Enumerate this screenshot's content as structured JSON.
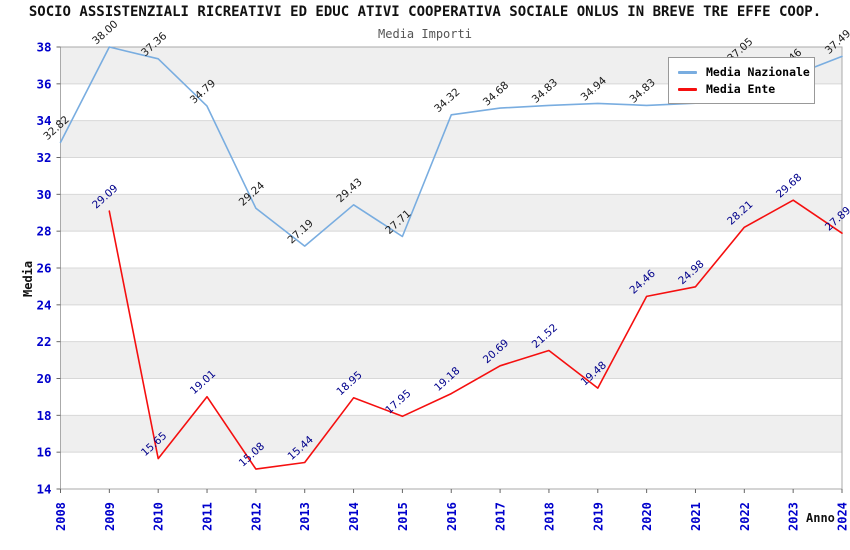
{
  "title": "SOCIO ASSISTENZIALI RICREATIVI ED EDUC ATIVI COOPERATIVA SOCIALE ONLUS IN BREVE TRE EFFE COOP.",
  "subtitle": "Media Importi",
  "chart_data": {
    "type": "line",
    "x": [
      2008,
      2009,
      2010,
      2011,
      2012,
      2013,
      2014,
      2015,
      2016,
      2017,
      2018,
      2019,
      2020,
      2021,
      2022,
      2023,
      2024
    ],
    "xlabel": "Anno",
    "ylabel": "Media",
    "ylim": [
      14,
      38
    ],
    "ytick_step": 2,
    "grid": true,
    "legend_position": "top-right",
    "colors": {
      "axis_tick": "#0000cc",
      "band_gray": "#efefef",
      "band_white": "#ffffff",
      "gridline": "#d8d8d8",
      "plot_border": "#aaaaaa"
    },
    "series": [
      {
        "name": "Media Nazionale",
        "color": "#79ade0",
        "label_color": "#1a1a1a",
        "values": [
          32.82,
          38.0,
          37.36,
          34.79,
          29.24,
          27.19,
          29.43,
          27.71,
          34.32,
          34.68,
          34.83,
          34.94,
          34.83,
          34.95,
          37.05,
          36.46,
          37.49
        ],
        "labels": [
          "32.82",
          "38.00",
          "37.36",
          "34.79",
          "29.24",
          "27.19",
          "29.43",
          "27.71",
          "34.32",
          "34.68",
          "34.83",
          "34.94",
          "34.83",
          "",
          "37.05",
          "36.46",
          "37.49"
        ]
      },
      {
        "name": "Media Ente",
        "color": "#f50f0f",
        "label_color": "#00008b",
        "values": [
          null,
          29.09,
          15.65,
          19.01,
          15.08,
          15.44,
          18.95,
          17.95,
          19.18,
          20.69,
          21.52,
          19.48,
          24.46,
          24.98,
          28.21,
          29.68,
          27.89
        ],
        "labels": [
          "",
          "29.09",
          "15.65",
          "19.01",
          "15.08",
          "15.44",
          "18.95",
          "17.95",
          "19.18",
          "20.69",
          "21.52",
          "19.48",
          "24.46",
          "24.98",
          "28.21",
          "29.68",
          "27.89"
        ]
      }
    ]
  }
}
